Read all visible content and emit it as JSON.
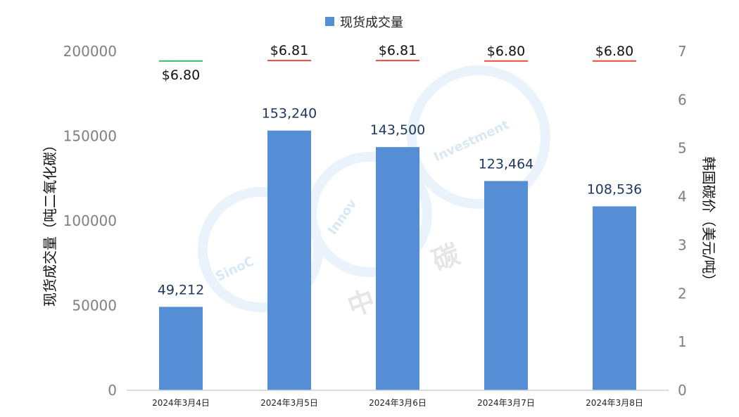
{
  "chart_data": {
    "type": "bar",
    "categories": [
      "2024年3月4日",
      "2024年3月5日",
      "2024年3月6日",
      "2024年3月7日",
      "2024年3月8日"
    ],
    "series": [
      {
        "name": "现货成交量",
        "axis": "left",
        "values": [
          49212,
          153240,
          143500,
          123464,
          108536
        ],
        "value_labels": [
          "49,212",
          "153,240",
          "143,500",
          "123,464",
          "108,536"
        ],
        "color": "#558ed5"
      },
      {
        "axis": "right",
        "values": [
          6.8,
          6.81,
          6.81,
          6.8,
          6.8
        ],
        "value_labels": [
          "$6.80",
          "$6.81",
          "$6.81",
          "$6.80",
          "$6.80"
        ],
        "marker_colors": [
          "#3cb371",
          "#e74c3c",
          "#e74c3c",
          "#e74c3c",
          "#e74c3c"
        ]
      }
    ],
    "ylabel": "现货成交量（吨二氧化碳）",
    "ylim": [
      0,
      200000
    ],
    "yticks": [
      "0",
      "50000",
      "100000",
      "150000",
      "200000"
    ],
    "y2label": "韩国碳价（美元/吨）",
    "y2lim": [
      0,
      7
    ],
    "y2ticks": [
      "0",
      "1",
      "2",
      "3",
      "4",
      "5",
      "6",
      "7"
    ],
    "legend": {
      "position": "top",
      "label": "现货成交量"
    },
    "grid": false
  },
  "watermark": {
    "text_latin_1": "SinoC",
    "text_latin_2": "Innov",
    "text_latin_3": "Investment",
    "text_cn_1": "中",
    "text_cn_2": "碳"
  }
}
